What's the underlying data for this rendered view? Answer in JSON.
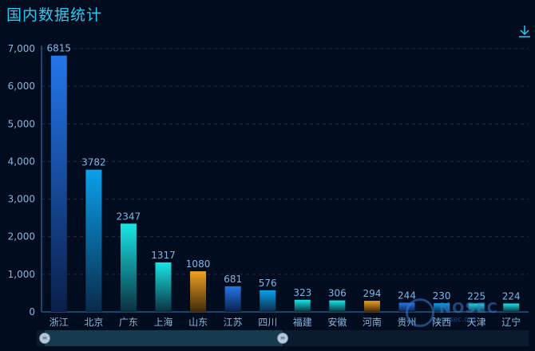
{
  "header": {
    "title": "国内数据统计"
  },
  "toolbar": {
    "download_icon": "download-icon"
  },
  "watermark": {
    "text": "NOSEC",
    "sub": "nosec.org"
  },
  "chart_data": {
    "type": "bar",
    "title": "国内数据统计",
    "categories": [
      "浙江",
      "北京",
      "广东",
      "上海",
      "山东",
      "江苏",
      "四川",
      "福建",
      "安徽",
      "河南",
      "贵州",
      "陕西",
      "天津",
      "辽宁"
    ],
    "values": [
      6815,
      3782,
      2347,
      1317,
      1080,
      681,
      576,
      323,
      306,
      294,
      244,
      230,
      225,
      224
    ],
    "bar_colors": [
      [
        "#2476ea",
        "#0a1f4a"
      ],
      [
        "#0aa0ea",
        "#0a2a4a"
      ],
      [
        "#19e6e6",
        "#0a3040"
      ],
      [
        "#19e6e6",
        "#0a3040"
      ],
      [
        "#f0a020",
        "#402a0a"
      ],
      [
        "#2476ea",
        "#0a1f4a"
      ],
      [
        "#0aa0ea",
        "#0a2a4a"
      ],
      [
        "#19e6e6",
        "#0a3040"
      ],
      [
        "#19e6e6",
        "#0a3040"
      ],
      [
        "#f0a020",
        "#402a0a"
      ],
      [
        "#2476ea",
        "#0a1f4a"
      ],
      [
        "#0aa0ea",
        "#0a2a4a"
      ],
      [
        "#19e6e6",
        "#0a3040"
      ],
      [
        "#19e6e6",
        "#0a3040"
      ]
    ],
    "ylim": [
      0,
      7000
    ],
    "yticks": [
      "0",
      "1,000",
      "2,000",
      "3,000",
      "4,000",
      "5,000",
      "6,000",
      "7,000"
    ],
    "ytick_values": [
      0,
      1000,
      2000,
      3000,
      4000,
      5000,
      6000,
      7000
    ],
    "grid": true,
    "xlabel": "",
    "ylabel": ""
  },
  "datazoom": {
    "start_percent": 0,
    "end_percent": 50
  }
}
